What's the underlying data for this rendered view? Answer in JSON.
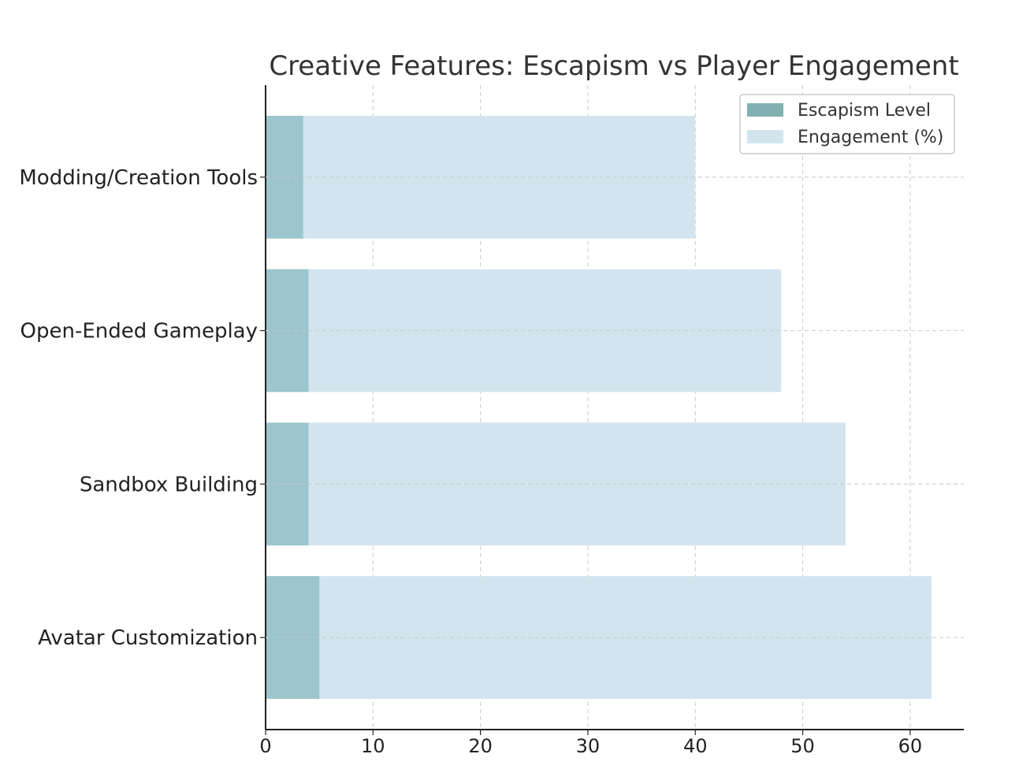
{
  "chart_data": {
    "type": "bar",
    "orientation": "horizontal",
    "title": "Creative Features: Escapism vs Player Engagement",
    "xlabel": "",
    "ylabel": "",
    "categories": [
      "Avatar Customization",
      "Sandbox Building",
      "Open-Ended Gameplay",
      "Modding/Creation Tools"
    ],
    "series": [
      {
        "name": "Engagement (%)",
        "values": [
          62,
          54,
          48,
          40
        ],
        "color": "#d2e5ee"
      },
      {
        "name": "Escapism Level",
        "values": [
          5,
          4,
          4,
          3.5
        ],
        "color": "#9cc5cd"
      }
    ],
    "legend_swatch_colors": {
      "Escapism Level": "#7fb2b1",
      "Engagement (%)": "#d2e5ee"
    },
    "legend_order": [
      "Escapism Level",
      "Engagement (%)"
    ],
    "legend_position": "top-right",
    "xlim": [
      0,
      65
    ],
    "xticks": [
      0,
      10,
      20,
      30,
      40,
      50,
      60
    ],
    "grid": true
  }
}
